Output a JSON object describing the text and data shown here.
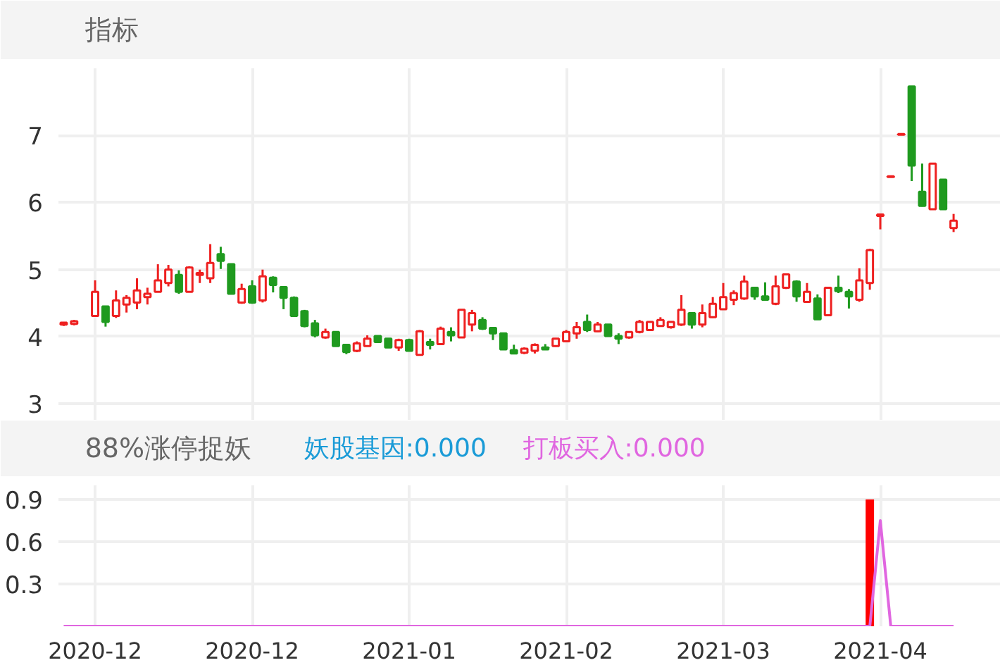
{
  "chart_data": [
    {
      "type": "candlestick",
      "title": "指标",
      "categories": [
        null,
        null,
        null,
        "2020-12",
        null,
        null,
        null,
        null,
        null,
        null,
        null,
        null,
        null,
        null,
        null,
        null,
        null,
        null,
        "2020-12",
        null,
        null,
        null,
        null,
        null,
        null,
        null,
        null,
        null,
        null,
        null,
        null,
        null,
        null,
        "2021-01",
        null,
        null,
        null,
        null,
        null,
        null,
        null,
        null,
        null,
        null,
        null,
        null,
        null,
        null,
        "2021-02",
        null,
        null,
        null,
        null,
        null,
        null,
        null,
        null,
        null,
        null,
        null,
        null,
        null,
        null,
        "2021-03",
        null,
        null,
        null,
        null,
        null,
        null,
        null,
        null,
        null,
        null,
        null,
        null,
        null,
        null,
        "2021-04",
        null,
        null,
        null,
        null,
        null,
        null,
        null
      ],
      "ohlc": [
        [
          4.18,
          4.22,
          4.16,
          4.21
        ],
        [
          4.19,
          4.25,
          4.17,
          4.23
        ],
        null,
        [
          4.31,
          4.84,
          4.31,
          4.67
        ],
        [
          4.45,
          4.46,
          4.15,
          4.22
        ],
        [
          4.31,
          4.69,
          4.28,
          4.54
        ],
        [
          4.48,
          4.62,
          4.36,
          4.58
        ],
        [
          4.51,
          4.87,
          4.41,
          4.69
        ],
        [
          4.59,
          4.73,
          4.48,
          4.64
        ],
        [
          4.67,
          5.08,
          4.67,
          4.84
        ],
        [
          4.8,
          5.07,
          4.75,
          5.0
        ],
        [
          4.92,
          4.99,
          4.64,
          4.67
        ],
        [
          4.67,
          5.05,
          4.67,
          5.03
        ],
        [
          4.92,
          5.0,
          4.8,
          4.95
        ],
        [
          4.87,
          5.38,
          4.8,
          5.1
        ],
        [
          5.23,
          5.34,
          5.01,
          5.13
        ],
        [
          5.08,
          5.08,
          4.64,
          4.64
        ],
        [
          4.51,
          4.79,
          4.49,
          4.71
        ],
        [
          4.75,
          4.84,
          4.49,
          4.51
        ],
        [
          4.54,
          5.0,
          4.51,
          4.9
        ],
        [
          4.88,
          4.9,
          4.66,
          4.77
        ],
        [
          4.74,
          4.75,
          4.41,
          4.58
        ],
        [
          4.58,
          4.6,
          4.3,
          4.31
        ],
        [
          4.38,
          4.4,
          4.14,
          4.16
        ],
        [
          4.2,
          4.25,
          3.99,
          4.02
        ],
        [
          3.99,
          4.12,
          3.97,
          4.07
        ],
        [
          4.07,
          4.07,
          3.86,
          3.86
        ],
        [
          3.88,
          3.89,
          3.74,
          3.77
        ],
        [
          3.79,
          3.93,
          3.77,
          3.9
        ],
        [
          3.86,
          4.02,
          3.86,
          3.97
        ],
        [
          4.01,
          4.01,
          3.91,
          3.92
        ],
        [
          3.97,
          3.97,
          3.84,
          3.84
        ],
        [
          3.84,
          3.97,
          3.79,
          3.95
        ],
        [
          3.95,
          3.97,
          3.79,
          3.79
        ],
        [
          3.73,
          4.1,
          3.72,
          4.08
        ],
        [
          3.92,
          3.97,
          3.81,
          3.88
        ],
        [
          3.89,
          4.15,
          3.89,
          4.12
        ],
        [
          4.07,
          4.14,
          3.93,
          4.02
        ],
        [
          3.99,
          4.4,
          3.99,
          4.4
        ],
        [
          4.18,
          4.4,
          4.08,
          4.35
        ],
        [
          4.25,
          4.29,
          4.1,
          4.12
        ],
        [
          4.13,
          4.14,
          3.95,
          4.05
        ],
        [
          4.05,
          4.05,
          3.8,
          3.81
        ],
        [
          3.8,
          3.88,
          3.75,
          3.75
        ],
        [
          3.76,
          3.84,
          3.74,
          3.82
        ],
        [
          3.79,
          3.9,
          3.75,
          3.88
        ],
        [
          3.84,
          3.89,
          3.81,
          3.81
        ],
        [
          3.86,
          3.98,
          3.85,
          3.97
        ],
        [
          3.93,
          4.1,
          3.92,
          4.07
        ],
        [
          4.05,
          4.22,
          3.97,
          4.14
        ],
        [
          4.22,
          4.33,
          4.07,
          4.1
        ],
        [
          4.08,
          4.22,
          4.07,
          4.18
        ],
        [
          4.18,
          4.18,
          4.0,
          4.01
        ],
        [
          4.01,
          4.05,
          3.89,
          3.97
        ],
        [
          3.99,
          4.08,
          3.97,
          4.07
        ],
        [
          4.07,
          4.25,
          4.05,
          4.22
        ],
        [
          4.1,
          4.23,
          4.1,
          4.22
        ],
        [
          4.16,
          4.29,
          4.15,
          4.25
        ],
        [
          4.14,
          4.23,
          4.12,
          4.22
        ],
        [
          4.18,
          4.62,
          4.16,
          4.4
        ],
        [
          4.35,
          4.36,
          4.12,
          4.18
        ],
        [
          4.18,
          4.48,
          4.14,
          4.35
        ],
        [
          4.29,
          4.59,
          4.28,
          4.49
        ],
        [
          4.41,
          4.8,
          4.4,
          4.59
        ],
        [
          4.55,
          4.69,
          4.47,
          4.65
        ],
        [
          4.57,
          4.91,
          4.55,
          4.82
        ],
        [
          4.73,
          4.73,
          4.55,
          4.6
        ],
        [
          4.6,
          4.81,
          4.55,
          4.55
        ],
        [
          4.49,
          4.91,
          4.47,
          4.75
        ],
        [
          4.73,
          4.94,
          4.71,
          4.93
        ],
        [
          4.82,
          4.84,
          4.52,
          4.6
        ],
        [
          4.52,
          4.8,
          4.52,
          4.67
        ],
        [
          4.57,
          4.63,
          4.26,
          4.26
        ],
        [
          4.32,
          4.73,
          4.32,
          4.73
        ],
        [
          4.73,
          4.91,
          4.65,
          4.68
        ],
        [
          4.67,
          4.71,
          4.42,
          4.6
        ],
        [
          4.55,
          5.02,
          4.52,
          4.84
        ],
        [
          4.8,
          5.31,
          4.7,
          5.29
        ],
        [
          5.8,
          5.82,
          5.6,
          5.82
        ],
        [
          6.38,
          6.39,
          6.38,
          6.39
        ],
        [
          7.01,
          7.02,
          7.01,
          7.02
        ],
        [
          7.73,
          7.73,
          6.32,
          6.55
        ],
        [
          6.16,
          6.58,
          5.94,
          5.95
        ],
        [
          5.9,
          6.58,
          5.9,
          6.58
        ],
        [
          6.34,
          6.35,
          5.9,
          5.9
        ],
        [
          5.62,
          5.83,
          5.56,
          5.73
        ]
      ],
      "colors": [
        "#ee2020",
        "#ee2020",
        null,
        "#ee2020",
        "#1f9a1f",
        "#ee2020",
        "#ee2020",
        "#ee2020",
        "#ee2020",
        "#ee2020",
        "#ee2020",
        "#1f9a1f",
        "#ee2020",
        "#ee2020",
        "#ee2020",
        "#1f9a1f",
        "#1f9a1f",
        "#ee2020",
        "#1f9a1f",
        "#ee2020",
        "#1f9a1f",
        "#1f9a1f",
        "#1f9a1f",
        "#1f9a1f",
        "#1f9a1f",
        "#ee2020",
        "#1f9a1f",
        "#1f9a1f",
        "#ee2020",
        "#ee2020",
        "#1f9a1f",
        "#1f9a1f",
        "#ee2020",
        "#1f9a1f",
        "#ee2020",
        "#1f9a1f",
        "#ee2020",
        "#1f9a1f",
        "#ee2020",
        "#ee2020",
        "#1f9a1f",
        "#1f9a1f",
        "#1f9a1f",
        "#1f9a1f",
        "#ee2020",
        "#ee2020",
        "#1f9a1f",
        "#ee2020",
        "#ee2020",
        "#ee2020",
        "#1f9a1f",
        "#ee2020",
        "#1f9a1f",
        "#1f9a1f",
        "#ee2020",
        "#ee2020",
        "#ee2020",
        "#ee2020",
        "#ee2020",
        "#ee2020",
        "#1f9a1f",
        "#ee2020",
        "#ee2020",
        "#ee2020",
        "#ee2020",
        "#ee2020",
        "#1f9a1f",
        "#1f9a1f",
        "#ee2020",
        "#ee2020",
        "#1f9a1f",
        "#ee2020",
        "#1f9a1f",
        "#ee2020",
        "#1f9a1f",
        "#1f9a1f",
        "#ee2020",
        "#ee2020",
        "#ee2020",
        "#ee2020",
        "#ee2020",
        "#1f9a1f",
        "#1f9a1f",
        "#ee2020",
        "#1f9a1f",
        "#ee2020"
      ],
      "ylim": [
        2.75,
        8.0
      ],
      "yticks": [
        3,
        4,
        5,
        6,
        7
      ],
      "grid": true,
      "tick_labels": "y"
    },
    {
      "type": "bar",
      "title": "88%涨停捉妖",
      "categories": [
        null,
        null,
        null,
        "2020-12",
        null,
        null,
        null,
        null,
        null,
        null,
        null,
        null,
        null,
        null,
        null,
        null,
        null,
        null,
        "2020-12",
        null,
        null,
        null,
        null,
        null,
        null,
        null,
        null,
        null,
        null,
        null,
        null,
        null,
        null,
        "2021-01",
        null,
        null,
        null,
        null,
        null,
        null,
        null,
        null,
        null,
        null,
        null,
        null,
        null,
        null,
        "2021-02",
        null,
        null,
        null,
        null,
        null,
        null,
        null,
        null,
        null,
        null,
        null,
        null,
        null,
        null,
        "2021-03",
        null,
        null,
        null,
        null,
        null,
        null,
        null,
        null,
        null,
        null,
        null,
        null,
        null,
        null,
        "2021-04",
        null,
        null,
        null,
        null,
        null,
        null,
        null
      ],
      "series": [
        {
          "type": "bar",
          "color": "#ff0000",
          "values": [
            null,
            null,
            null,
            null,
            null,
            null,
            null,
            null,
            null,
            null,
            null,
            null,
            null,
            null,
            null,
            null,
            null,
            null,
            null,
            null,
            null,
            null,
            null,
            null,
            null,
            null,
            null,
            null,
            null,
            null,
            null,
            null,
            null,
            null,
            null,
            null,
            null,
            null,
            null,
            null,
            null,
            null,
            null,
            null,
            null,
            null,
            null,
            null,
            null,
            null,
            null,
            null,
            null,
            null,
            null,
            null,
            null,
            null,
            null,
            null,
            null,
            null,
            null,
            null,
            null,
            null,
            null,
            null,
            null,
            null,
            null,
            null,
            null,
            null,
            null,
            null,
            null,
            0.9,
            null,
            null,
            null,
            null,
            null,
            null,
            null,
            null
          ]
        },
        {
          "type": "line",
          "name": "妖股基因:0.000",
          "color": "#1a9bd7",
          "values": [
            null,
            null,
            null,
            null,
            null,
            null,
            null,
            null,
            null,
            null,
            null,
            null,
            null,
            null,
            null,
            null,
            null,
            null,
            null,
            null,
            null,
            null,
            null,
            null,
            null,
            null,
            null,
            null,
            null,
            null,
            null,
            null,
            null,
            null,
            null,
            null,
            null,
            null,
            null,
            null,
            null,
            null,
            null,
            null,
            null,
            null,
            null,
            null,
            null,
            null,
            null,
            null,
            null,
            null,
            null,
            null,
            null,
            null,
            null,
            null,
            null,
            null,
            null,
            null,
            null,
            null,
            null,
            null,
            null,
            null,
            null,
            null,
            null,
            null,
            null,
            null,
            null,
            null,
            null,
            null,
            null,
            null,
            null,
            null,
            null,
            null
          ]
        },
        {
          "type": "line",
          "name": "打板买入:0.000",
          "color": "#e066e0",
          "values": [
            0,
            0,
            0,
            0,
            0,
            0,
            0,
            0,
            0,
            0,
            0,
            0,
            0,
            0,
            0,
            0,
            0,
            0,
            0,
            0,
            0,
            0,
            0,
            0,
            0,
            0,
            0,
            0,
            0,
            0,
            0,
            0,
            0,
            0,
            0,
            0,
            0,
            0,
            0,
            0,
            0,
            0,
            0,
            0,
            0,
            0,
            0,
            0,
            0,
            0,
            0,
            0,
            0,
            0,
            0,
            0,
            0,
            0,
            0,
            0,
            0,
            0,
            0,
            0,
            0,
            0,
            0,
            0,
            0,
            0,
            0,
            0,
            0,
            0,
            0,
            0,
            0,
            0,
            0.75,
            0,
            0,
            0,
            0,
            0,
            0,
            0
          ]
        }
      ],
      "ylim": [
        0,
        1.0
      ],
      "yticks": [
        0.3,
        0.6,
        0.9
      ],
      "grid": true
    }
  ]
}
